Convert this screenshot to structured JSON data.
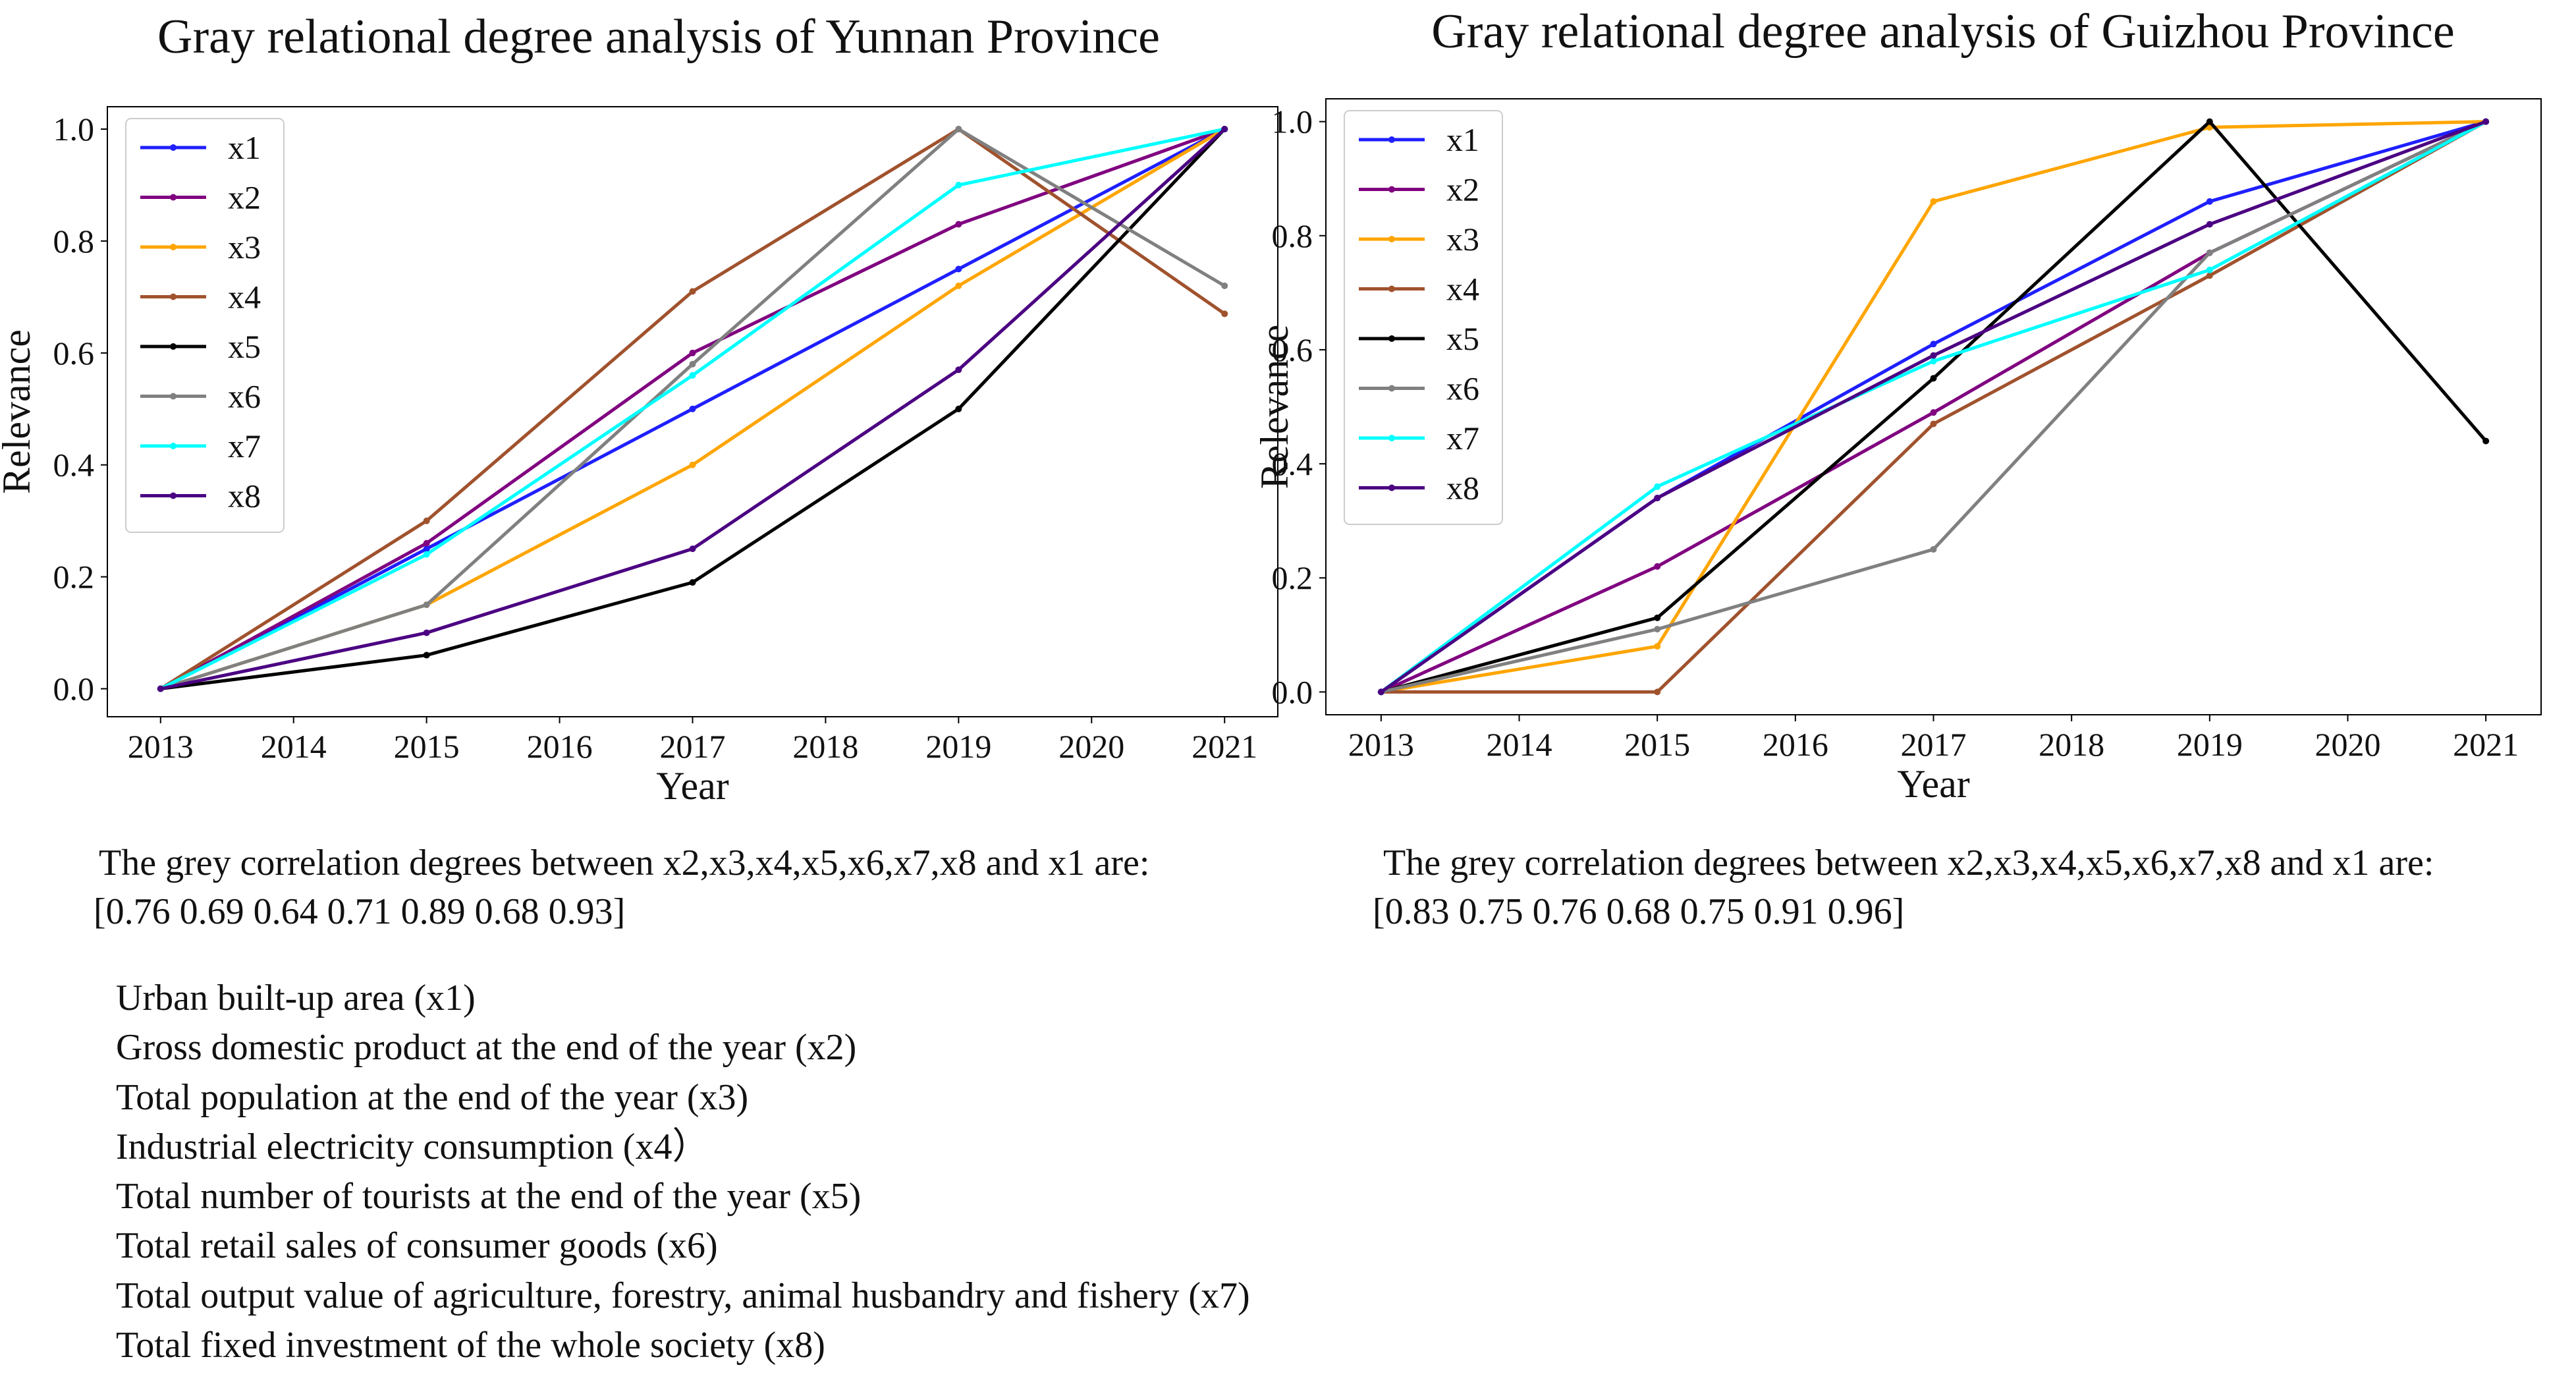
{
  "chart_data": [
    {
      "type": "line",
      "title": "Gray relational degree analysis of Yunnan Province",
      "xlabel": "Year",
      "ylabel": "Relevance",
      "x": [
        2013,
        2015,
        2017,
        2019,
        2021
      ],
      "xticks": [
        "2013",
        "2014",
        "2015",
        "2016",
        "2017",
        "2018",
        "2019",
        "2020",
        "2021"
      ],
      "yticks": [
        "0.0",
        "0.2",
        "0.4",
        "0.6",
        "0.8",
        "1.0"
      ],
      "xlim": [
        2012.6,
        2021.4
      ],
      "ylim": [
        -0.05,
        1.04
      ],
      "legend_position": "top-left",
      "series": [
        {
          "name": "x1",
          "color": "#1f1fff",
          "values": [
            0.0,
            0.25,
            0.5,
            0.75,
            1.0
          ]
        },
        {
          "name": "x2",
          "color": "#800080",
          "values": [
            0.0,
            0.26,
            0.6,
            0.83,
            1.0
          ]
        },
        {
          "name": "x3",
          "color": "#ffa500",
          "values": [
            0.0,
            0.15,
            0.4,
            0.72,
            1.0
          ]
        },
        {
          "name": "x4",
          "color": "#a0522d",
          "values": [
            0.0,
            0.3,
            0.71,
            1.0,
            0.67
          ]
        },
        {
          "name": "x5",
          "color": "#000000",
          "values": [
            0.0,
            0.06,
            0.19,
            0.5,
            1.0
          ]
        },
        {
          "name": "x6",
          "color": "#808080",
          "values": [
            0.0,
            0.15,
            0.58,
            1.0,
            0.72
          ]
        },
        {
          "name": "x7",
          "color": "#00ffff",
          "values": [
            0.0,
            0.24,
            0.56,
            0.9,
            1.0
          ]
        },
        {
          "name": "x8",
          "color": "#4b0082",
          "values": [
            0.0,
            0.1,
            0.25,
            0.57,
            1.0
          ]
        }
      ]
    },
    {
      "type": "line",
      "title": "Gray relational degree analysis of Guizhou Province",
      "xlabel": "Year",
      "ylabel": "Relevance",
      "x": [
        2013,
        2015,
        2017,
        2019,
        2021
      ],
      "xticks": [
        "2013",
        "2014",
        "2015",
        "2016",
        "2017",
        "2018",
        "2019",
        "2020",
        "2021"
      ],
      "yticks": [
        "0.0",
        "0.2",
        "0.4",
        "0.6",
        "0.8",
        "1.0"
      ],
      "xlim": [
        2012.6,
        2021.4
      ],
      "ylim": [
        -0.04,
        1.04
      ],
      "legend_position": "top-left",
      "series": [
        {
          "name": "x1",
          "color": "#1f1fff",
          "values": [
            0.0,
            0.34,
            0.61,
            0.86,
            1.0
          ]
        },
        {
          "name": "x2",
          "color": "#800080",
          "values": [
            0.0,
            0.22,
            0.49,
            0.77,
            1.0
          ]
        },
        {
          "name": "x3",
          "color": "#ffa500",
          "values": [
            0.0,
            0.08,
            0.86,
            0.99,
            1.0
          ]
        },
        {
          "name": "x4",
          "color": "#a0522d",
          "values": [
            0.0,
            0.0,
            0.47,
            0.73,
            1.0
          ]
        },
        {
          "name": "x5",
          "color": "#000000",
          "values": [
            0.0,
            0.13,
            0.55,
            1.0,
            0.44
          ]
        },
        {
          "name": "x6",
          "color": "#808080",
          "values": [
            0.0,
            0.11,
            0.25,
            0.77,
            1.0
          ]
        },
        {
          "name": "x7",
          "color": "#00ffff",
          "values": [
            0.0,
            0.36,
            0.58,
            0.74,
            1.0
          ]
        },
        {
          "name": "x8",
          "color": "#4b0082",
          "values": [
            0.0,
            0.34,
            0.59,
            0.82,
            1.0
          ]
        }
      ]
    }
  ],
  "correlation": {
    "left": {
      "text": "The grey correlation degrees between x2,x3,x4,x5,x6,x7,x8 and x1 are:",
      "values": "[0.76 0.69 0.64 0.71  0.89 0.68 0.93]"
    },
    "right": {
      "text": "The grey correlation degrees between x2,x3,x4,x5,x6,x7,x8 and x1 are:",
      "values": "[0.83 0.75 0.76 0.68 0.75 0.91 0.96]"
    }
  },
  "variables": [
    "Urban built-up area (x1)",
    "Gross domestic product at the end of the year (x2)",
    "Total population at the end of the year (x3)",
    "Industrial electricity consumption (x4）",
    "Total number of tourists at the end of the year (x5)",
    "Total retail sales of consumer goods (x6)",
    "Total output value of agriculture, forestry, animal husbandry and fishery (x7)",
    "Total fixed investment of the whole society (x8)"
  ]
}
